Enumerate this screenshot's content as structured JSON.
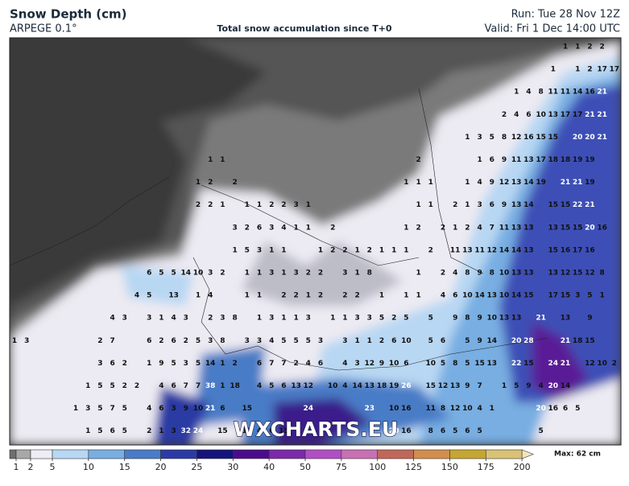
{
  "header": {
    "title": "Snow Depth (cm)",
    "model": "ARPEGE 0.1°",
    "subtitle": "Total snow accumulation since T+0",
    "run": "Run: Tue 28 Nov 12Z",
    "valid": "Valid: Fri 1 Dec 14:00 UTC"
  },
  "map": {
    "watermark": "WXCHARTS.EU",
    "rows": [
      [
        null,
        null,
        null,
        null,
        null,
        null,
        null,
        null,
        null,
        null,
        null,
        null,
        null,
        null,
        null,
        null,
        null,
        null,
        null,
        null,
        null,
        null,
        null,
        null,
        null,
        null,
        null,
        null,
        null,
        null,
        null,
        null,
        null,
        null,
        null,
        null,
        null,
        null,
        null,
        null,
        null,
        null,
        null,
        null,
        null,
        1,
        1,
        2,
        2
      ],
      [
        null,
        null,
        null,
        null,
        null,
        null,
        null,
        null,
        null,
        null,
        null,
        null,
        null,
        null,
        null,
        null,
        null,
        null,
        null,
        null,
        null,
        null,
        null,
        null,
        null,
        null,
        null,
        null,
        null,
        null,
        null,
        null,
        null,
        null,
        null,
        null,
        null,
        null,
        null,
        null,
        null,
        null,
        null,
        null,
        1,
        null,
        1,
        2,
        17,
        17
      ],
      [
        null,
        null,
        null,
        null,
        null,
        null,
        null,
        null,
        null,
        null,
        null,
        null,
        null,
        null,
        null,
        null,
        null,
        null,
        null,
        null,
        null,
        null,
        null,
        null,
        null,
        null,
        null,
        null,
        null,
        null,
        null,
        null,
        null,
        null,
        null,
        null,
        null,
        null,
        null,
        null,
        null,
        1,
        4,
        8,
        11,
        11,
        14,
        16,
        21
      ],
      [
        null,
        null,
        null,
        null,
        null,
        null,
        null,
        null,
        null,
        null,
        null,
        null,
        null,
        null,
        null,
        null,
        null,
        null,
        null,
        null,
        null,
        null,
        null,
        null,
        null,
        null,
        null,
        null,
        null,
        null,
        null,
        null,
        null,
        null,
        null,
        null,
        null,
        null,
        null,
        null,
        2,
        4,
        6,
        10,
        13,
        17,
        17,
        21,
        21
      ],
      [
        null,
        null,
        null,
        null,
        null,
        null,
        null,
        null,
        null,
        null,
        null,
        null,
        null,
        null,
        null,
        null,
        null,
        null,
        null,
        null,
        null,
        null,
        null,
        null,
        null,
        null,
        null,
        null,
        null,
        null,
        null,
        null,
        null,
        null,
        null,
        null,
        null,
        1,
        3,
        5,
        8,
        12,
        16,
        15,
        15,
        null,
        20,
        20,
        21
      ],
      [
        null,
        null,
        null,
        null,
        null,
        null,
        null,
        null,
        null,
        null,
        null,
        null,
        null,
        null,
        null,
        null,
        1,
        1,
        null,
        null,
        null,
        null,
        null,
        null,
        null,
        null,
        null,
        null,
        null,
        null,
        null,
        null,
        null,
        2,
        null,
        null,
        null,
        null,
        1,
        6,
        9,
        11,
        13,
        17,
        18,
        18,
        19,
        19
      ],
      [
        null,
        null,
        null,
        null,
        null,
        null,
        null,
        null,
        null,
        null,
        null,
        null,
        null,
        null,
        null,
        1,
        2,
        null,
        2,
        null,
        null,
        null,
        null,
        null,
        null,
        null,
        null,
        null,
        null,
        null,
        null,
        null,
        1,
        1,
        1,
        null,
        null,
        1,
        4,
        9,
        12,
        13,
        14,
        19,
        null,
        21,
        21,
        19
      ],
      [
        null,
        null,
        null,
        null,
        null,
        null,
        null,
        null,
        null,
        null,
        null,
        null,
        null,
        null,
        null,
        2,
        2,
        1,
        null,
        1,
        1,
        2,
        2,
        3,
        1,
        null,
        null,
        null,
        null,
        null,
        null,
        null,
        null,
        1,
        1,
        null,
        2,
        1,
        3,
        6,
        9,
        13,
        14,
        null,
        15,
        15,
        22,
        21
      ],
      [
        null,
        null,
        null,
        null,
        null,
        null,
        null,
        null,
        null,
        null,
        null,
        null,
        null,
        null,
        null,
        null,
        null,
        null,
        3,
        2,
        6,
        3,
        4,
        1,
        1,
        null,
        2,
        null,
        null,
        null,
        null,
        null,
        1,
        2,
        null,
        2,
        1,
        2,
        4,
        7,
        11,
        13,
        13,
        null,
        13,
        15,
        15,
        20,
        16
      ],
      [
        null,
        null,
        null,
        null,
        null,
        null,
        null,
        null,
        null,
        null,
        null,
        null,
        null,
        null,
        null,
        null,
        null,
        null,
        1,
        5,
        3,
        1,
        1,
        null,
        null,
        1,
        2,
        2,
        1,
        2,
        1,
        1,
        1,
        null,
        2,
        null,
        11,
        13,
        11,
        12,
        14,
        14,
        13,
        null,
        15,
        16,
        17,
        16
      ],
      [
        null,
        null,
        null,
        null,
        null,
        null,
        null,
        null,
        null,
        null,
        null,
        6,
        5,
        5,
        14,
        10,
        3,
        2,
        null,
        1,
        1,
        3,
        1,
        3,
        2,
        2,
        null,
        3,
        1,
        8,
        null,
        null,
        null,
        1,
        null,
        2,
        4,
        8,
        9,
        8,
        10,
        13,
        13,
        null,
        13,
        12,
        15,
        12,
        8
      ],
      [
        null,
        null,
        null,
        null,
        null,
        null,
        null,
        null,
        null,
        null,
        4,
        5,
        null,
        13,
        null,
        1,
        4,
        null,
        null,
        1,
        1,
        null,
        2,
        2,
        1,
        2,
        null,
        2,
        2,
        null,
        1,
        null,
        1,
        1,
        null,
        4,
        6,
        10,
        14,
        13,
        10,
        14,
        15,
        null,
        17,
        15,
        3,
        5,
        1
      ],
      [
        null,
        null,
        null,
        null,
        null,
        null,
        null,
        null,
        4,
        3,
        null,
        3,
        1,
        4,
        3,
        null,
        2,
        3,
        8,
        null,
        1,
        3,
        1,
        1,
        3,
        null,
        1,
        1,
        3,
        3,
        5,
        2,
        5,
        null,
        5,
        null,
        9,
        8,
        9,
        10,
        13,
        13,
        null,
        21,
        null,
        13,
        null,
        9
      ],
      [
        1,
        3,
        null,
        null,
        null,
        null,
        null,
        2,
        7,
        null,
        null,
        6,
        2,
        6,
        2,
        5,
        3,
        8,
        null,
        3,
        3,
        4,
        5,
        5,
        5,
        3,
        null,
        3,
        1,
        1,
        2,
        6,
        10,
        null,
        5,
        6,
        null,
        5,
        9,
        14,
        null,
        20,
        28,
        null,
        null,
        21,
        18,
        15
      ],
      [
        null,
        null,
        null,
        null,
        null,
        null,
        null,
        3,
        6,
        2,
        null,
        1,
        9,
        5,
        3,
        5,
        14,
        1,
        2,
        null,
        6,
        7,
        7,
        2,
        4,
        6,
        null,
        4,
        3,
        12,
        9,
        10,
        6,
        null,
        10,
        5,
        8,
        5,
        15,
        13,
        null,
        22,
        15,
        null,
        24,
        21,
        null,
        12,
        10,
        2
      ],
      [
        null,
        null,
        null,
        null,
        null,
        null,
        1,
        5,
        5,
        2,
        2,
        null,
        4,
        6,
        7,
        7,
        38,
        1,
        18,
        null,
        4,
        5,
        6,
        13,
        12,
        null,
        10,
        4,
        14,
        13,
        18,
        19,
        26,
        null,
        15,
        12,
        13,
        9,
        7,
        null,
        1,
        5,
        9,
        4,
        20,
        14
      ],
      [
        null,
        null,
        null,
        null,
        null,
        1,
        3,
        5,
        7,
        5,
        null,
        4,
        6,
        3,
        9,
        10,
        21,
        6,
        null,
        15,
        null,
        null,
        null,
        null,
        24,
        null,
        null,
        null,
        null,
        23,
        null,
        10,
        16,
        null,
        11,
        8,
        12,
        10,
        4,
        1,
        null,
        null,
        null,
        20,
        16,
        6,
        5
      ],
      [
        null,
        null,
        null,
        null,
        null,
        null,
        1,
        5,
        6,
        5,
        null,
        2,
        1,
        3,
        32,
        24,
        null,
        15,
        null,
        13,
        4,
        6,
        15,
        null,
        null,
        null,
        null,
        null,
        null,
        null,
        null,
        20,
        16,
        null,
        8,
        6,
        5,
        6,
        5,
        null,
        null,
        null,
        null,
        5
      ]
    ]
  },
  "legend": {
    "ticks": [
      1,
      2,
      5,
      10,
      15,
      20,
      25,
      30,
      40,
      50,
      75,
      100,
      125,
      150,
      175,
      200
    ],
    "colors": [
      "#6e6e6e",
      "#a8a8a8",
      "#eeedf5",
      "#b8d7f3",
      "#78aee2",
      "#4a7bc6",
      "#2c3ba4",
      "#14147c",
      "#4b0c8c",
      "#7b2aaa",
      "#b04ec4",
      "#c870b2",
      "#c06858",
      "#d28e4e",
      "#c6a632",
      "#d8c276",
      "#f4e6ba"
    ],
    "max_label": "Max: 62 cm"
  }
}
